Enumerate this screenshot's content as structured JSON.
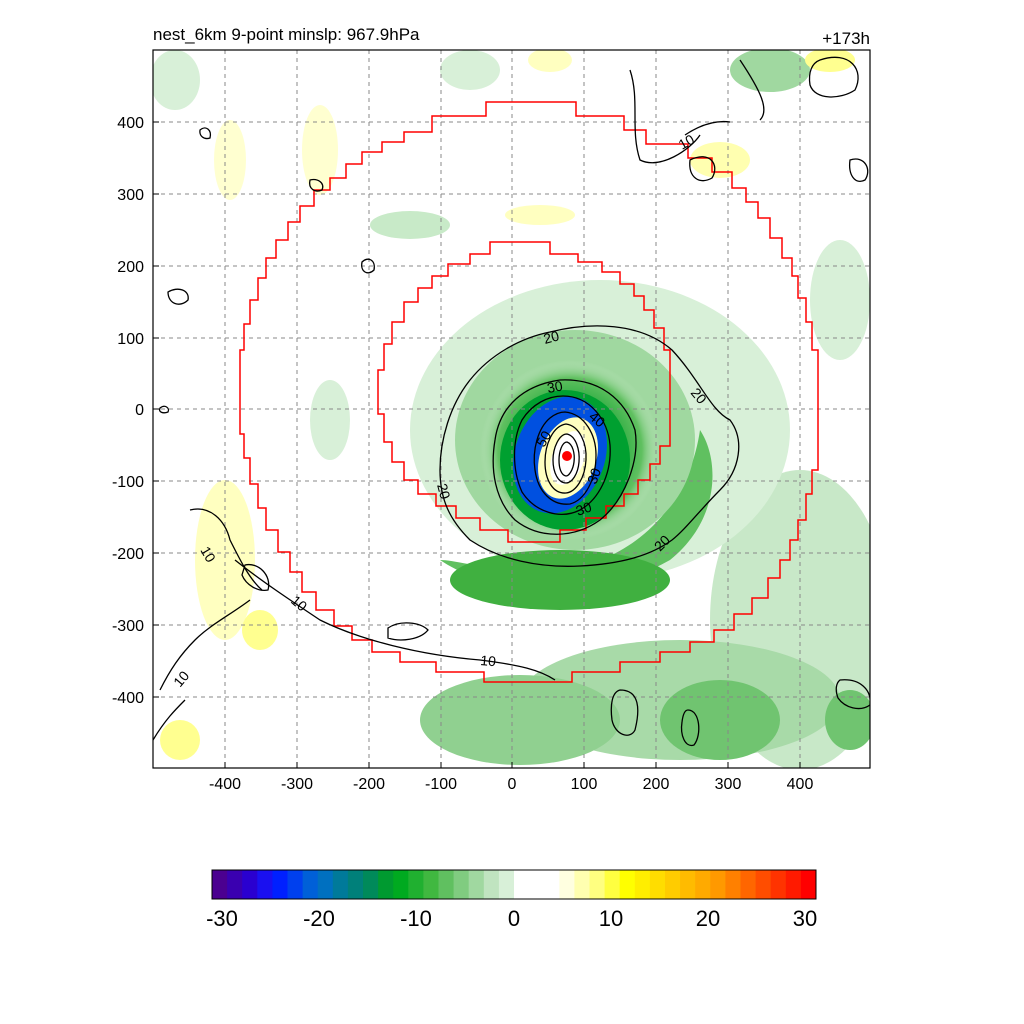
{
  "header": {
    "title_left": "nest_6km  9-point minslp: 967.9hPa",
    "title_right": "+173h"
  },
  "axes": {
    "x_ticks": [
      "-400",
      "-300",
      "-200",
      "-100",
      "0",
      "100",
      "200",
      "300",
      "400"
    ],
    "y_ticks": [
      "400",
      "300",
      "200",
      "100",
      "0",
      "-100",
      "-200",
      "-300",
      "-400"
    ]
  },
  "contour_labels": {
    "c10a": "10",
    "c10b": "10",
    "c10c": "10",
    "c10d": "10",
    "c10e": "10",
    "c20a": "20",
    "c20b": "20",
    "c20c": "20",
    "c20d": "20",
    "c30a": "30",
    "c30b": "30",
    "c40": "40",
    "c50": "50",
    "c50b": "30"
  },
  "colorbar": {
    "labels": [
      "-30",
      "-20",
      "-10",
      "0",
      "10",
      "20",
      "30"
    ],
    "colors": [
      "#4b0090",
      "#3a00b0",
      "#2a00d0",
      "#1a10f0",
      "#0020ff",
      "#0040ee",
      "#0060d8",
      "#0070c0",
      "#007a9a",
      "#00807a",
      "#008a5a",
      "#009a30",
      "#00aa20",
      "#20b030",
      "#40b840",
      "#60c060",
      "#80cc80",
      "#a0d8a0",
      "#c0e4c0",
      "#d8f0d8",
      "#ffffff",
      "#ffffff",
      "#ffffff",
      "#ffffe0",
      "#ffffb0",
      "#ffff80",
      "#ffff40",
      "#ffff00",
      "#ffee00",
      "#ffdd00",
      "#ffcc00",
      "#ffbb00",
      "#ffaa00",
      "#ff9900",
      "#ff8000",
      "#ff6600",
      "#ff4d00",
      "#ff3300",
      "#ff1a00",
      "#ff0000"
    ]
  }
}
